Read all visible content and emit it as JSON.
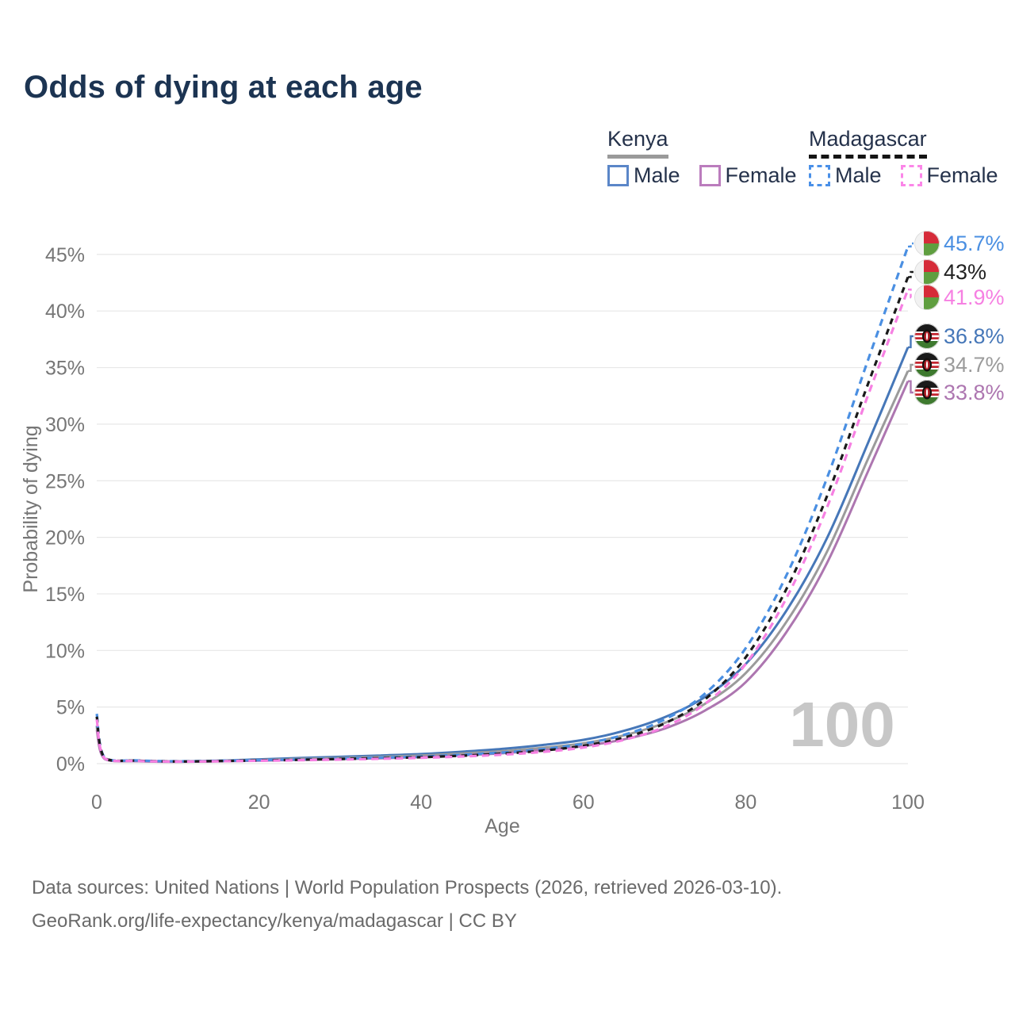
{
  "header": {
    "title": "Odds of dying at each age"
  },
  "legend": {
    "groups": [
      {
        "country": "Kenya",
        "line_style": "solid",
        "key_color": "#9a9a9a",
        "items": [
          {
            "label": "Male",
            "color": "#4677b8"
          },
          {
            "label": "Female",
            "color": "#ad76b0"
          }
        ]
      },
      {
        "country": "Madagascar",
        "line_style": "dashed",
        "key_color": "#141414",
        "items": [
          {
            "label": "Male",
            "color": "#4a8fe2"
          },
          {
            "label": "Female",
            "color": "#f680e2"
          }
        ]
      }
    ]
  },
  "chart_data": {
    "type": "line",
    "title": "Odds of dying at each age",
    "xlabel": "Age",
    "ylabel": "Probability of dying",
    "xlim": [
      0,
      100
    ],
    "ylim": [
      0,
      46
    ],
    "x_ticks": [
      0,
      20,
      40,
      60,
      80,
      100
    ],
    "y_tick_values": [
      0,
      5,
      10,
      15,
      20,
      25,
      30,
      35,
      40,
      45
    ],
    "y_tick_labels": [
      "0%",
      "5%",
      "10%",
      "15%",
      "20%",
      "25%",
      "30%",
      "35%",
      "40%",
      "45%"
    ],
    "grid": "horizontal",
    "legend_position": "top-right",
    "watermark": "100",
    "ages": [
      0,
      1,
      5,
      10,
      15,
      20,
      25,
      30,
      35,
      40,
      45,
      50,
      55,
      60,
      65,
      70,
      75,
      80,
      85,
      90,
      95,
      100
    ],
    "series": [
      {
        "name": "Madagascar Male",
        "country": "Madagascar",
        "style": "dashed",
        "color": "#4a8fe2",
        "flag": "madagascar",
        "end_label": "45.7%",
        "end_label_color": "#4a8fe2",
        "values": [
          4.4,
          0.52,
          0.28,
          0.21,
          0.25,
          0.31,
          0.38,
          0.45,
          0.53,
          0.63,
          0.78,
          0.98,
          1.28,
          1.75,
          2.55,
          3.9,
          6.2,
          10.2,
          16.6,
          25.2,
          35.5,
          45.7
        ]
      },
      {
        "name": "Madagascar",
        "country": "Madagascar",
        "style": "dashed",
        "color": "#1a1a1a",
        "flag": "madagascar",
        "end_label": "43%",
        "end_label_color": "#222222",
        "values": [
          4.15,
          0.48,
          0.26,
          0.19,
          0.23,
          0.28,
          0.34,
          0.41,
          0.48,
          0.57,
          0.7,
          0.88,
          1.15,
          1.58,
          2.3,
          3.55,
          5.7,
          9.4,
          15.4,
          23.6,
          33.4,
          43.0
        ]
      },
      {
        "name": "Madagascar Female",
        "country": "Madagascar",
        "style": "dashed",
        "color": "#f680e2",
        "flag": "madagascar",
        "end_label": "41.9%",
        "end_label_color": "#f680e2",
        "values": [
          3.9,
          0.45,
          0.24,
          0.18,
          0.21,
          0.25,
          0.3,
          0.36,
          0.43,
          0.51,
          0.63,
          0.79,
          1.04,
          1.42,
          2.1,
          3.25,
          5.3,
          8.8,
          14.6,
          22.6,
          32.4,
          41.9
        ]
      },
      {
        "name": "Kenya Male",
        "country": "Kenya",
        "style": "solid",
        "color": "#4677b8",
        "flag": "kenya",
        "end_label": "36.8%",
        "end_label_color": "#4677b8",
        "values": [
          3.35,
          0.45,
          0.25,
          0.2,
          0.26,
          0.38,
          0.5,
          0.6,
          0.72,
          0.85,
          1.05,
          1.3,
          1.65,
          2.1,
          2.9,
          4.1,
          5.9,
          8.8,
          13.5,
          19.9,
          28.2,
          36.8
        ]
      },
      {
        "name": "Kenya",
        "country": "Kenya",
        "style": "solid",
        "color": "#9b9b9b",
        "flag": "kenya",
        "end_label": "34.7%",
        "end_label_color": "#9b9b9b",
        "values": [
          3.2,
          0.42,
          0.23,
          0.18,
          0.23,
          0.32,
          0.42,
          0.5,
          0.6,
          0.72,
          0.9,
          1.1,
          1.4,
          1.8,
          2.5,
          3.6,
          5.3,
          8.0,
          12.5,
          18.7,
          26.8,
          34.7
        ]
      },
      {
        "name": "Kenya Female",
        "country": "Kenya",
        "style": "solid",
        "color": "#ad76b0",
        "flag": "kenya",
        "end_label": "33.8%",
        "end_label_color": "#ad76b0",
        "values": [
          3.0,
          0.4,
          0.21,
          0.16,
          0.2,
          0.26,
          0.33,
          0.4,
          0.48,
          0.58,
          0.73,
          0.92,
          1.2,
          1.55,
          2.15,
          3.1,
          4.7,
          7.2,
          11.6,
          17.7,
          25.7,
          33.8
        ]
      }
    ]
  },
  "footer": {
    "line1": "Data sources: United Nations | World Population Prospects (2026, retrieved 2026-03-10).",
    "line2": "GeoRank.org/life-expectancy/kenya/madagascar | CC BY"
  }
}
